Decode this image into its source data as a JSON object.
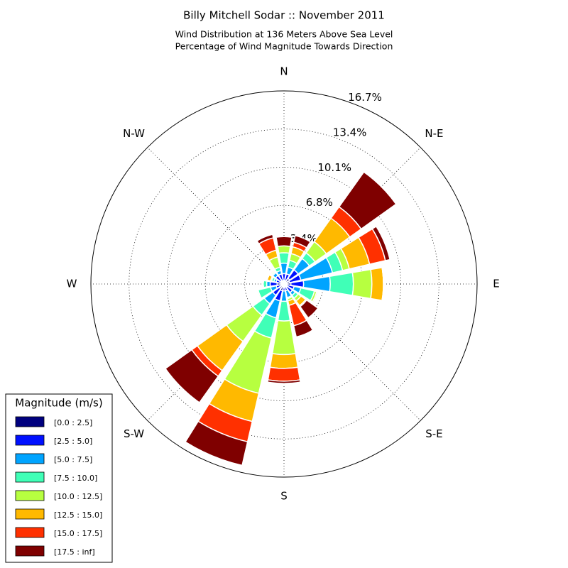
{
  "chart_data": {
    "type": "windrose",
    "title": "Billy Mitchell Sodar :: November 2011",
    "subtitle": [
      "Wind Distribution at 136 Meters Above Sea Level",
      "Percentage of Wind Magnitude Towards Direction"
    ],
    "legend_title": "Magnitude (m/s)",
    "categories": [
      "N",
      null,
      "N-E",
      null,
      "E",
      null,
      "S-E",
      null,
      "S",
      null,
      "S-W",
      null,
      "W",
      null,
      "N-W",
      null
    ],
    "ylim": [
      0,
      16.7
    ],
    "yticks": [
      {
        "value": 3.4,
        "label": "3.4%"
      },
      {
        "value": 6.8,
        "label": "6.8%"
      },
      {
        "value": 10.1,
        "label": "10.1%"
      },
      {
        "value": 13.4,
        "label": "13.4%"
      },
      {
        "value": 16.7,
        "label": "16.7%"
      }
    ],
    "grid": true,
    "legend": "lower left",
    "series": [
      {
        "name": "[0.0 : 2.5]",
        "color": "#00007f",
        "values": [
          0.3,
          0.3,
          0.6,
          0.5,
          0.6,
          0.3,
          0.3,
          0.2,
          0.3,
          0.6,
          0.5,
          0.3,
          0.6,
          0.3,
          0.3,
          0.3
        ]
      },
      {
        "name": "[2.5 : 5.0]",
        "color": "#0010ff",
        "values": [
          0.6,
          0.6,
          0.9,
          1.0,
          1.1,
          0.6,
          0.6,
          0.4,
          0.3,
          0.9,
          0.7,
          0.4,
          0.6,
          0.4,
          0.6,
          0.6
        ]
      },
      {
        "name": "[5.0 : 7.5]",
        "color": "#00a4ff",
        "values": [
          0.9,
          0.6,
          1.2,
          2.8,
          2.3,
          0.6,
          0.3,
          0.6,
          0.9,
          1.5,
          0.9,
          0.5,
          0.3,
          0.2,
          0.3,
          0.3
        ]
      },
      {
        "name": "[7.5 : 10.0]",
        "color": "#40ffb7",
        "values": [
          0.9,
          0.6,
          0.6,
          0.9,
          2.0,
          1.2,
          0.3,
          0.1,
          1.7,
          1.8,
          1.2,
          1.1,
          0.3,
          0.2,
          0.1,
          0.3
        ]
      },
      {
        "name": "[10.0 : 12.5]",
        "color": "#b7ff40",
        "values": [
          0.6,
          0.6,
          1.2,
          0.6,
          1.6,
          0.2,
          0.3,
          0.2,
          2.9,
          4.9,
          2.8,
          0.1,
          0,
          0.1,
          0.1,
          0.9
        ]
      },
      {
        "name": "[12.5 : 15.0]",
        "color": "#ffb900",
        "values": [
          0,
          0.6,
          2.5,
          1.8,
          1.0,
          0.1,
          0.5,
          0.4,
          1.2,
          2.5,
          3.1,
          0,
          0,
          0.3,
          0.1,
          0.6
        ]
      },
      {
        "name": "[15.0 : 17.5]",
        "color": "#ff3000",
        "values": [
          0,
          0.4,
          1.2,
          1.4,
          0,
          0,
          0.1,
          1.8,
          1.1,
          1.8,
          0.6,
          0,
          0,
          0,
          0,
          1.1
        ]
      },
      {
        "name": "[17.5 : inf]",
        "color": "#7f0000",
        "values": [
          0.8,
          0.6,
          3.7,
          0.4,
          0,
          0,
          1.2,
          1.0,
          0.2,
          2.1,
          2.8,
          0,
          0,
          0,
          0,
          0.3
        ]
      }
    ]
  }
}
